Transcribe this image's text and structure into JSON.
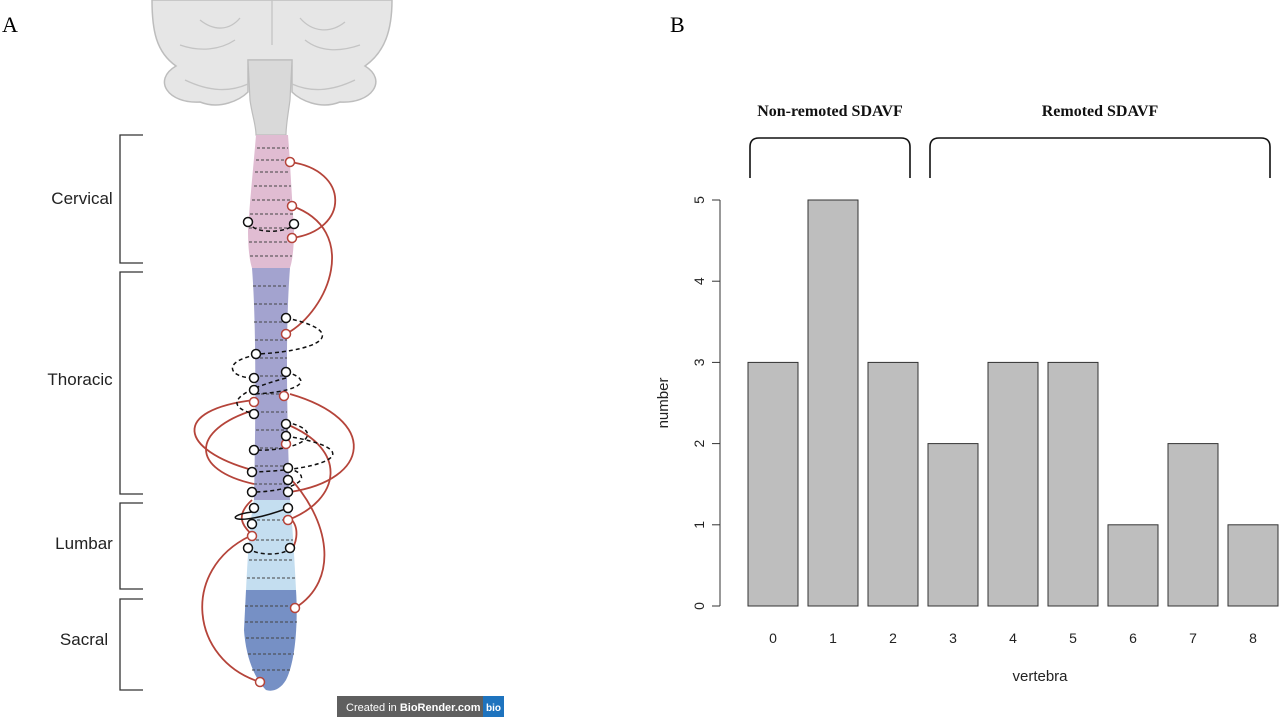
{
  "panel_a": {
    "label": "A",
    "regions": [
      "Cervical",
      "Thoracic",
      "Lumbar",
      "Sacral"
    ],
    "badge": {
      "prefix": "Created in ",
      "brand": "BioRender.com",
      "logo": "bio"
    }
  },
  "panel_b": {
    "label": "B",
    "groups": [
      {
        "label": "Non-remoted SDAVF",
        "from": 0,
        "to": 2
      },
      {
        "label": "Remoted SDAVF",
        "from": 3,
        "to": 8
      }
    ]
  },
  "chart_data": {
    "type": "bar",
    "categories": [
      "0",
      "1",
      "2",
      "3",
      "4",
      "5",
      "6",
      "7",
      "8"
    ],
    "values": [
      3,
      5,
      3,
      2,
      3,
      3,
      1,
      2,
      1
    ],
    "xlabel": "vertebra",
    "ylabel": "number",
    "ylim": [
      0,
      5
    ],
    "yticks": [
      "0",
      "1",
      "2",
      "3",
      "4",
      "5"
    ],
    "bar_color": "#bebebe",
    "grid": false
  }
}
